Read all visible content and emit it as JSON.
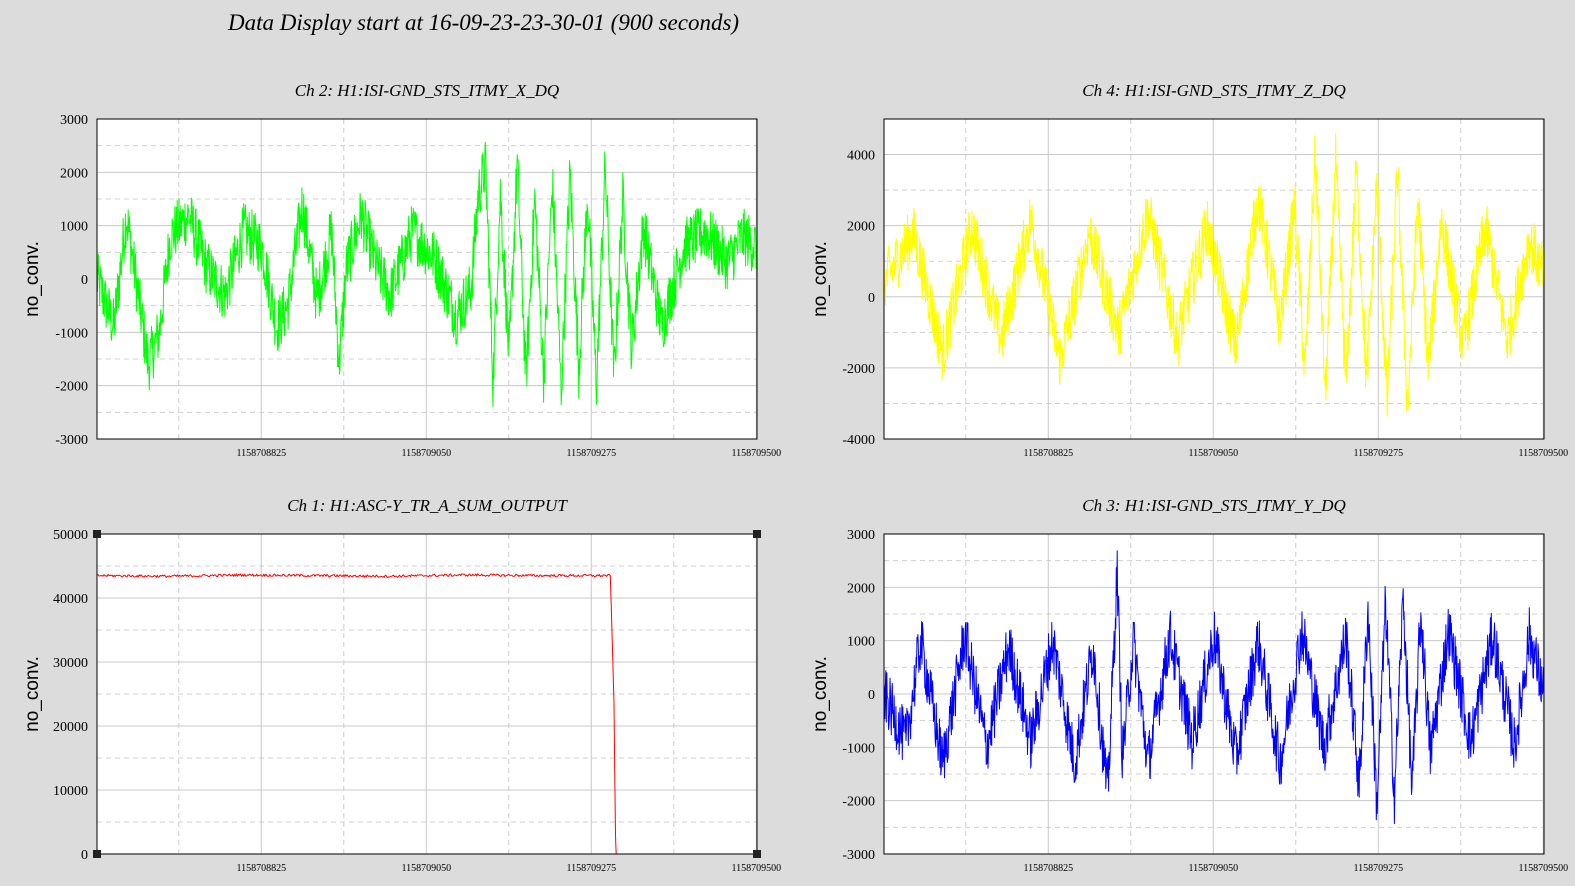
{
  "header": {
    "title": "Data Display start at 16-09-23-23-30-01 (900 seconds)"
  },
  "colors": {
    "background": "#dcdcdc",
    "plot_bg": "#ffffff",
    "grid": "#cccccc"
  },
  "chart_data": [
    {
      "type": "line",
      "panel": "top-left",
      "title": "Ch 2: H1:ISI-GND_STS_ITMY_X_DQ",
      "ylabel": "no_conv.",
      "xlabel": "",
      "color": "#00ff00",
      "xlim": [
        1158708601,
        1158709501
      ],
      "ylim": [
        -3000,
        3000
      ],
      "yticks": [
        3000,
        2000,
        1000,
        0,
        -1000,
        -2000,
        -3000
      ],
      "xticks": [
        1158708825,
        1158709050,
        1158709275,
        1158709500
      ],
      "grid": true,
      "series": [
        {
          "x": [
            1158708601,
            1158708624,
            1158708641,
            1158708671,
            1158708686,
            1158708701,
            1158708726,
            1158708751,
            1158708776,
            1158708801,
            1158708826,
            1158708846,
            1158708861,
            1158708881,
            1158708901,
            1158708921,
            1158708931,
            1158708941,
            1158708961,
            1158708981,
            1158709001,
            1158709031,
            1158709061,
            1158709091,
            1158709111,
            1158709121,
            1158709131,
            1158709141,
            1158709151,
            1158709163,
            1158709174,
            1158709186,
            1158709198,
            1158709210,
            1158709222,
            1158709234,
            1158709246,
            1158709258,
            1158709270,
            1158709282,
            1158709294,
            1158709306,
            1158709318,
            1158709330,
            1158709346,
            1158709371,
            1158709401,
            1158709431,
            1158709461,
            1158709481,
            1158709501
          ],
          "y": [
            0,
            -900,
            1200,
            -1600,
            -1000,
            800,
            1200,
            200,
            -300,
            900,
            600,
            -900,
            -500,
            1400,
            -400,
            900,
            -1600,
            200,
            1200,
            300,
            -300,
            900,
            400,
            -700,
            -200,
            1600,
            2100,
            -1900,
            1600,
            -1500,
            2200,
            -1900,
            1500,
            -1800,
            1800,
            -2100,
            2000,
            -1700,
            1600,
            -2000,
            2100,
            -1800,
            1500,
            -1300,
            1000,
            -900,
            600,
            900,
            300,
            800,
            600
          ]
        }
      ]
    },
    {
      "type": "line",
      "panel": "top-right",
      "title": "Ch 4: H1:ISI-GND_STS_ITMY_Z_DQ",
      "ylabel": "no_conv.",
      "xlabel": "",
      "color": "#ffff00",
      "xlim": [
        1158708601,
        1158709501
      ],
      "ylim": [
        -4000,
        5000
      ],
      "yticks": [
        4000,
        2000,
        0,
        -2000,
        -4000
      ],
      "xticks": [
        1158708825,
        1158709050,
        1158709275,
        1158709500
      ],
      "grid": true,
      "series": [
        {
          "x": [
            1158708601,
            1158708641,
            1158708681,
            1158708721,
            1158708761,
            1158708801,
            1158708841,
            1158708881,
            1158708921,
            1158708961,
            1158709001,
            1158709041,
            1158709081,
            1158709111,
            1158709141,
            1158709161,
            1158709175,
            1158709189,
            1158709203,
            1158709217,
            1158709231,
            1158709245,
            1158709259,
            1158709273,
            1158709287,
            1158709301,
            1158709315,
            1158709329,
            1158709343,
            1158709361,
            1158709391,
            1158709421,
            1158709451,
            1158709481,
            1158709501
          ],
          "y": [
            400,
            1800,
            -1600,
            2000,
            -1200,
            2200,
            -1800,
            1800,
            -1000,
            2400,
            -1200,
            2000,
            -1400,
            2800,
            -800,
            2600,
            -2200,
            4000,
            -2800,
            3800,
            -2600,
            3600,
            -2400,
            3200,
            -3000,
            3500,
            -3200,
            2800,
            -2000,
            2200,
            -1400,
            2000,
            -1200,
            1600,
            600
          ]
        }
      ]
    },
    {
      "type": "line",
      "panel": "bottom-left",
      "title": "Ch 1: H1:ASC-Y_TR_A_SUM_OUTPUT",
      "ylabel": "no_conv.",
      "xlabel": "",
      "color": "#ff0000",
      "xlim": [
        1158708601,
        1158709501
      ],
      "ylim": [
        0,
        50000
      ],
      "yticks": [
        50000,
        40000,
        30000,
        20000,
        10000,
        0
      ],
      "xticks": [
        1158708825,
        1158709050,
        1158709275,
        1158709500
      ],
      "grid": true,
      "series": [
        {
          "x": [
            1158708601,
            1158708701,
            1158708801,
            1158708901,
            1158709001,
            1158709101,
            1158709201,
            1158709301,
            1158709306,
            1158709308,
            1158709309,
            1158709501
          ],
          "y": [
            43500,
            43400,
            43600,
            43500,
            43400,
            43600,
            43500,
            43500,
            23500,
            3000,
            0,
            0
          ]
        }
      ]
    },
    {
      "type": "line",
      "panel": "bottom-right",
      "title": "Ch 3: H1:ISI-GND_STS_ITMY_Y_DQ",
      "ylabel": "no_conv.",
      "xlabel": "",
      "color": "#0000ff",
      "xlim": [
        1158708601,
        1158709501
      ],
      "ylim": [
        -3000,
        3000
      ],
      "yticks": [
        3000,
        2000,
        1000,
        0,
        -1000,
        -2000,
        -3000
      ],
      "xticks": [
        1158708825,
        1158709050,
        1158709275,
        1158709500
      ],
      "grid": true,
      "series": [
        {
          "x": [
            1158708601,
            1158708631,
            1158708651,
            1158708681,
            1158708711,
            1158708741,
            1158708771,
            1158708801,
            1158708831,
            1158708861,
            1158708886,
            1158708906,
            1158708919,
            1158708926,
            1158708941,
            1158708961,
            1158708991,
            1158709021,
            1158709051,
            1158709081,
            1158709111,
            1158709141,
            1158709171,
            1158709201,
            1158709231,
            1158709249,
            1158709261,
            1158709273,
            1158709285,
            1158709297,
            1158709309,
            1158709321,
            1158709333,
            1158709346,
            1158709371,
            1158709401,
            1158709431,
            1158709461,
            1158709481,
            1158709501
          ],
          "y": [
            0,
            -900,
            1000,
            -1300,
            1100,
            -1000,
            900,
            -900,
            1000,
            -1300,
            900,
            -1900,
            2300,
            -1200,
            1000,
            -1300,
            1100,
            -900,
            1100,
            -1200,
            1000,
            -1300,
            1200,
            -1000,
            1100,
            -1700,
            1600,
            -2100,
            1700,
            -1900,
            1800,
            -1800,
            1500,
            -1100,
            1200,
            -900,
            1100,
            -1000,
            1100,
            0
          ]
        }
      ]
    }
  ]
}
